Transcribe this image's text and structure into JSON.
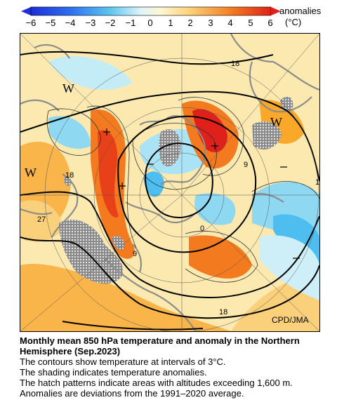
{
  "legend": {
    "label": "anomalies",
    "unit": "(°C)",
    "ticks": [
      "−6",
      "−5",
      "−4",
      "−3",
      "−2",
      "−1",
      "0",
      "1",
      "2",
      "3",
      "4",
      "5",
      "6"
    ],
    "colors": [
      "#1d2fd8",
      "#2c6cf0",
      "#3aa0f0",
      "#5cc6f0",
      "#a5e4f6",
      "#dff5fa",
      "#fdf6d2",
      "#fdd27a",
      "#f9a829",
      "#f47a1f",
      "#ee4a17",
      "#e0201a"
    ]
  },
  "map": {
    "contour_labels": [
      "18",
      "18",
      "27",
      "9",
      "9",
      "0",
      "18",
      "1"
    ],
    "region_labels": [
      "W",
      "W",
      "W"
    ],
    "credit": "CPD/JMA"
  },
  "caption": {
    "title_line1": "Monthly mean 850 hPa temperature and anomaly in the Northern",
    "title_line2": "Hemisphere (Sep.2023)",
    "line1": "The contours show temperature at intervals of 3°C.",
    "line2": "The shading indicates temperature anomalies.",
    "line3": "The hatch patterns indicate areas with altitudes exceeding 1,600 m.",
    "line4": "Anomalies are deviations from the 1991–2020 average."
  }
}
